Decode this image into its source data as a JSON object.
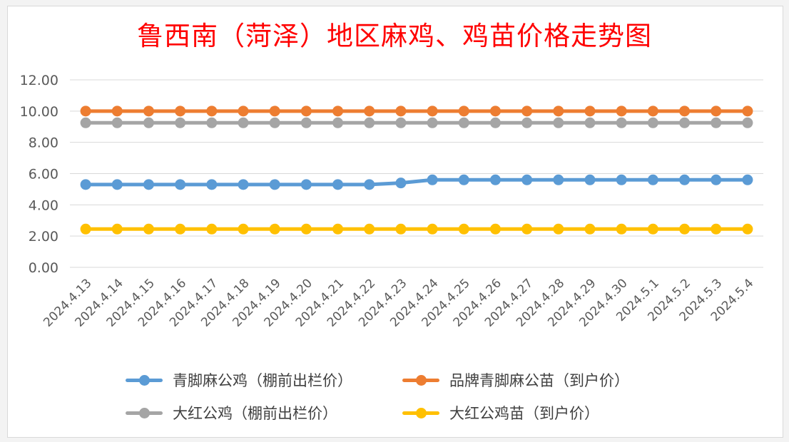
{
  "title": "鲁西南（菏泽）地区麻鸡、鸡苗价格走势图",
  "chart_data": {
    "type": "line",
    "title": "鲁西南（菏泽）地区麻鸡、鸡苗价格走势图",
    "xlabel": "",
    "ylabel": "",
    "ylim": [
      0,
      12
    ],
    "yticks": [
      "0.00",
      "2.00",
      "4.00",
      "6.00",
      "8.00",
      "10.00",
      "12.00"
    ],
    "grid": true,
    "legend_position": "bottom",
    "categories": [
      "2024.4.13",
      "2024.4.14",
      "2024.4.15",
      "2024.4.16",
      "2024.4.17",
      "2024.4.18",
      "2024.4.19",
      "2024.4.20",
      "2024.4.21",
      "2024.4.22",
      "2024.4.23",
      "2024.4.24",
      "2024.4.25",
      "2024.4.26",
      "2024.4.27",
      "2024.4.28",
      "2024.4.29",
      "2024.4.30",
      "2024.5.1",
      "2024.5.2",
      "2024.5.3",
      "2024.5.4"
    ],
    "series": [
      {
        "name": "青脚麻公鸡（棚前出栏价）",
        "color": "#5b9bd5",
        "values": [
          5.3,
          5.3,
          5.3,
          5.3,
          5.3,
          5.3,
          5.3,
          5.3,
          5.3,
          5.3,
          5.4,
          5.6,
          5.6,
          5.6,
          5.6,
          5.6,
          5.6,
          5.6,
          5.6,
          5.6,
          5.6,
          5.6
        ]
      },
      {
        "name": "品牌青脚麻公苗（到户价）",
        "color": "#ed7d31",
        "values": [
          10,
          10,
          10,
          10,
          10,
          10,
          10,
          10,
          10,
          10,
          10,
          10,
          10,
          10,
          10,
          10,
          10,
          10,
          10,
          10,
          10,
          10
        ]
      },
      {
        "name": "大红公鸡（棚前出栏价）",
        "color": "#a5a5a5",
        "values": [
          9.25,
          9.25,
          9.25,
          9.25,
          9.25,
          9.25,
          9.25,
          9.25,
          9.25,
          9.25,
          9.25,
          9.25,
          9.25,
          9.25,
          9.25,
          9.25,
          9.25,
          9.25,
          9.25,
          9.25,
          9.25,
          9.25
        ]
      },
      {
        "name": "大红公鸡苗（到户价）",
        "color": "#ffc000",
        "values": [
          2.45,
          2.45,
          2.45,
          2.45,
          2.45,
          2.45,
          2.45,
          2.45,
          2.45,
          2.45,
          2.45,
          2.45,
          2.45,
          2.45,
          2.45,
          2.45,
          2.45,
          2.45,
          2.45,
          2.45,
          2.45,
          2.45
        ]
      }
    ]
  }
}
